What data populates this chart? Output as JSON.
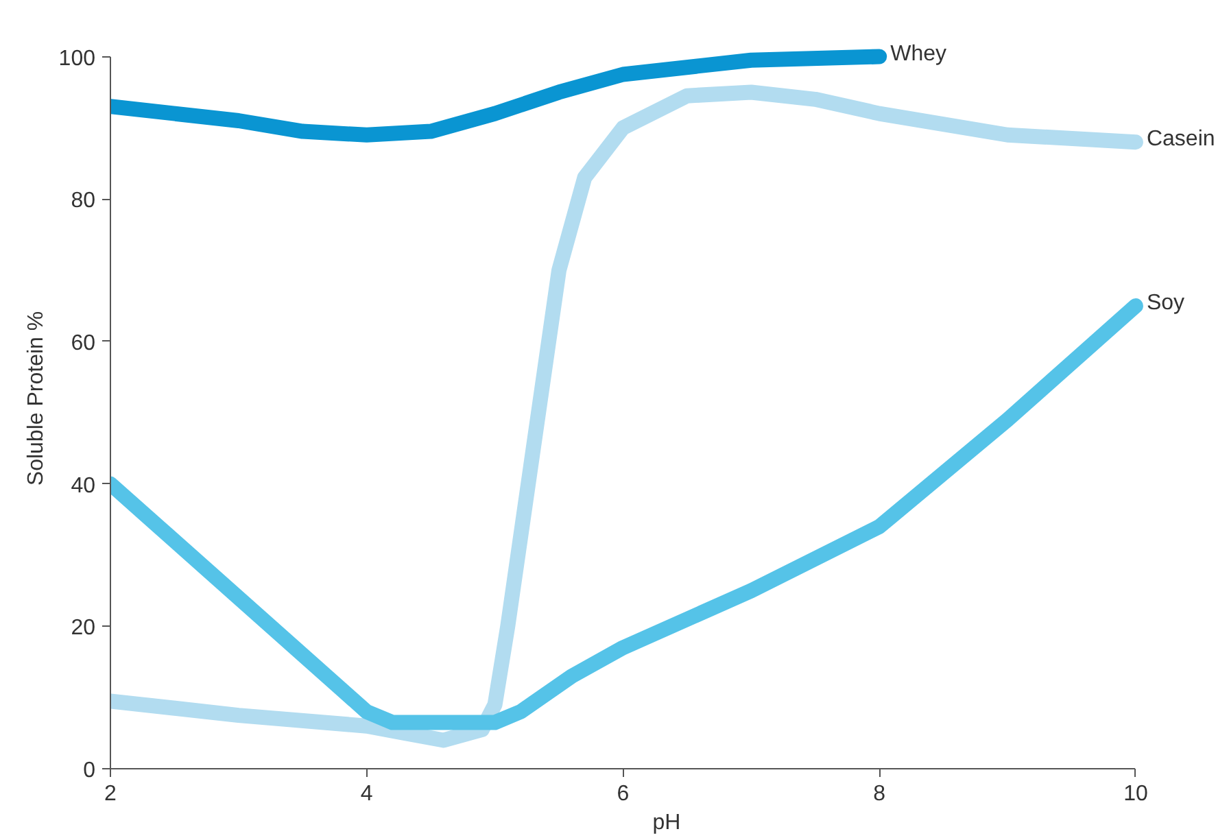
{
  "chart_data": {
    "type": "line",
    "xlabel": "pH",
    "ylabel": "Soluble Protein %",
    "xlim": [
      2,
      10
    ],
    "ylim": [
      0,
      100
    ],
    "xticks": [
      2,
      4,
      6,
      8,
      10
    ],
    "yticks": [
      0,
      20,
      40,
      60,
      80,
      100
    ],
    "grid": false,
    "legend": false,
    "line_style": "solid",
    "series": [
      {
        "name": "Whey",
        "color": "#0a95d2",
        "x": [
          2,
          3,
          3.5,
          4,
          4.5,
          5,
          5.5,
          6,
          7,
          8
        ],
        "values": [
          93,
          91,
          89.5,
          89,
          89.5,
          92,
          95,
          97.5,
          99.5,
          100
        ]
      },
      {
        "name": "Casein",
        "color": "#b2dcf0",
        "x": [
          2,
          3,
          4,
          4.3,
          4.6,
          4.9,
          5,
          5.1,
          5.3,
          5.5,
          5.7,
          6,
          6.5,
          7,
          7.5,
          8,
          9,
          10
        ],
        "values": [
          9.5,
          7.5,
          6,
          5,
          4,
          5.5,
          9,
          20,
          45,
          70,
          83,
          90,
          94.5,
          95,
          94,
          92,
          89,
          88
        ]
      },
      {
        "name": "Soy",
        "color": "#55c3e8",
        "x": [
          2,
          3,
          4,
          4.2,
          5,
          5.2,
          5.6,
          6,
          7,
          8,
          9,
          10
        ],
        "values": [
          40,
          24,
          8,
          6.5,
          6.5,
          8,
          13,
          17,
          25,
          34,
          49,
          65
        ]
      }
    ]
  }
}
